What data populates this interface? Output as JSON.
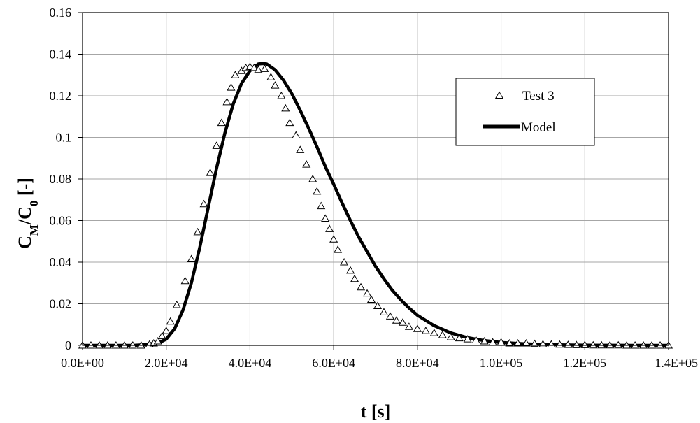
{
  "chart_data": {
    "type": "scatter",
    "title": "",
    "xlabel": "t [s]",
    "ylabel_main": "C",
    "ylabel_sub1": "M",
    "ylabel_mid": "/C",
    "ylabel_sub2": "0",
    "ylabel_tail": " [-]",
    "xlim": [
      0,
      140000
    ],
    "ylim": [
      0,
      0.16
    ],
    "grid": true,
    "legend_position": "top-right",
    "x_tick_labels": [
      "0.0E+00",
      "2.0E+04",
      "4.0E+04",
      "6.0E+04",
      "8.0E+04",
      "1.0E+05",
      "1.2E+05",
      "1.4E+05"
    ],
    "y_tick_labels": [
      "0",
      "0.02",
      "0.04",
      "0.06",
      "0.08",
      "0.1",
      "0.12",
      "0.14",
      "0.16"
    ],
    "series": [
      {
        "name": "Test 3",
        "kind": "scatter",
        "marker": "triangle-open",
        "x": [
          0,
          2000,
          4000,
          6000,
          8000,
          10000,
          12000,
          14000,
          16000,
          17000,
          18000,
          19000,
          20000,
          21000,
          22500,
          24500,
          26000,
          27500,
          29000,
          30500,
          32000,
          33200,
          34500,
          35500,
          36500,
          38000,
          39000,
          40000,
          41000,
          42000,
          43500,
          45000,
          46000,
          47500,
          48500,
          49500,
          51000,
          52000,
          53500,
          55000,
          56000,
          57000,
          58000,
          59000,
          60000,
          61000,
          62500,
          64000,
          65000,
          66500,
          68000,
          69000,
          70500,
          72000,
          73500,
          75000,
          76500,
          78000,
          80000,
          82000,
          84000,
          86000,
          88000,
          90000,
          92000,
          94000,
          96000,
          98000,
          100000,
          102000,
          104000,
          106000,
          108000,
          110000,
          112000,
          114000,
          116000,
          118000,
          120000,
          122000,
          124000,
          126000,
          128000,
          130000,
          132000,
          134000,
          136000,
          138000,
          140000
        ],
        "y": [
          0,
          0,
          0,
          0,
          0,
          0,
          0,
          0,
          0.0005,
          0.001,
          0.002,
          0.0045,
          0.007,
          0.0115,
          0.0195,
          0.031,
          0.0415,
          0.0545,
          0.068,
          0.083,
          0.096,
          0.107,
          0.117,
          0.124,
          0.13,
          0.132,
          0.1335,
          0.134,
          0.1335,
          0.1325,
          0.133,
          0.129,
          0.125,
          0.12,
          0.114,
          0.107,
          0.101,
          0.094,
          0.087,
          0.08,
          0.074,
          0.067,
          0.061,
          0.056,
          0.051,
          0.046,
          0.04,
          0.036,
          0.032,
          0.028,
          0.025,
          0.022,
          0.019,
          0.016,
          0.014,
          0.012,
          0.011,
          0.009,
          0.008,
          0.007,
          0.006,
          0.005,
          0.004,
          0.0035,
          0.003,
          0.0025,
          0.002,
          0.0015,
          0.0015,
          0.001,
          0.001,
          0.001,
          0.0008,
          0.0006,
          0.0005,
          0.0004,
          0.0003,
          0.0002,
          0.0002,
          0.0001,
          0.0001,
          0.0001,
          0.0001,
          0,
          0,
          0,
          0,
          0,
          0
        ]
      },
      {
        "name": "Model",
        "kind": "line",
        "x": [
          0,
          12000,
          15000,
          17000,
          19000,
          20000,
          22000,
          24000,
          26000,
          28000,
          30000,
          32000,
          34000,
          36000,
          38000,
          40000,
          42000,
          43000,
          44000,
          46000,
          48000,
          50000,
          52000,
          54000,
          56000,
          58000,
          60000,
          62000,
          64000,
          66000,
          68000,
          70000,
          72000,
          74000,
          76000,
          78000,
          80000,
          84000,
          88000,
          92000,
          96000,
          100000,
          105000,
          110000,
          115000,
          120000,
          125000,
          130000,
          135000,
          140000
        ],
        "y": [
          0,
          0,
          0.0003,
          0.001,
          0.002,
          0.003,
          0.008,
          0.017,
          0.03,
          0.047,
          0.066,
          0.085,
          0.102,
          0.116,
          0.126,
          0.132,
          0.1353,
          0.1355,
          0.1353,
          0.1325,
          0.1275,
          0.121,
          0.113,
          0.1045,
          0.0955,
          0.086,
          0.0775,
          0.0685,
          0.06,
          0.052,
          0.045,
          0.038,
          0.032,
          0.0265,
          0.022,
          0.018,
          0.0145,
          0.0095,
          0.006,
          0.0037,
          0.0023,
          0.0014,
          0.0008,
          0.0004,
          0.0002,
          0.0001,
          5e-05,
          2e-05,
          1e-05,
          0
        ]
      }
    ]
  }
}
